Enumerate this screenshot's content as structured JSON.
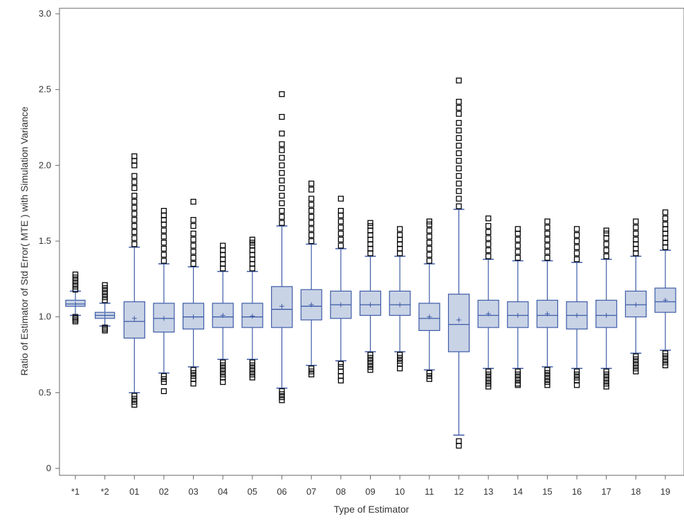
{
  "chart_data": {
    "type": "box",
    "title": "",
    "xlabel": "Type of Estimator",
    "ylabel": "Ratio of Estimator of Std Error( MTE ) with Simulation Variance",
    "ylim": [
      0,
      3.0
    ],
    "yticks": [
      0,
      0.5,
      1.0,
      1.5,
      2.0,
      2.5,
      3.0
    ],
    "ytick_labels": [
      "0",
      "0.5",
      "1.0",
      "1.5",
      "2.0",
      "2.5",
      "3.0"
    ],
    "grid": false,
    "legend": "none",
    "colors": {
      "box_fill": "#c9d3e6",
      "box_stroke": "#3b5aa6",
      "outlier_stroke": "#000000",
      "axis": "#666666"
    },
    "categories": [
      "*1",
      "*2",
      "01",
      "02",
      "03",
      "04",
      "05",
      "06",
      "07",
      "08",
      "09",
      "10",
      "11",
      "12",
      "13",
      "14",
      "15",
      "16",
      "17",
      "18",
      "19"
    ],
    "boxes": [
      {
        "category": "*1",
        "whisker_low": 1.01,
        "q1": 1.07,
        "median": 1.085,
        "mean": 1.085,
        "q3": 1.11,
        "whisker_high": 1.17,
        "outliers_low": [
          1.0,
          0.99,
          0.98,
          0.97
        ],
        "outliers_high": [
          1.18,
          1.2,
          1.22,
          1.24,
          1.26,
          1.28
        ]
      },
      {
        "category": "*2",
        "whisker_low": 0.94,
        "q1": 0.99,
        "median": 1.01,
        "mean": 1.01,
        "q3": 1.03,
        "whisker_high": 1.09,
        "outliers_low": [
          0.93,
          0.92,
          0.91
        ],
        "outliers_high": [
          1.11,
          1.13,
          1.15,
          1.17,
          1.19,
          1.21
        ]
      },
      {
        "category": "01",
        "whisker_low": 0.5,
        "q1": 0.86,
        "median": 0.97,
        "mean": 0.99,
        "q3": 1.1,
        "whisker_high": 1.46,
        "outliers_low": [
          0.48,
          0.46,
          0.44,
          0.42
        ],
        "outliers_high": [
          1.48,
          1.52,
          1.56,
          1.6,
          1.64,
          1.68,
          1.72,
          1.76,
          1.8,
          1.85,
          1.89,
          1.93,
          2.0,
          2.03,
          2.06
        ]
      },
      {
        "category": "02",
        "whisker_low": 0.63,
        "q1": 0.9,
        "median": 0.99,
        "mean": 0.99,
        "q3": 1.09,
        "whisker_high": 1.35,
        "outliers_low": [
          0.61,
          0.59,
          0.57,
          0.51
        ],
        "outliers_high": [
          1.37,
          1.41,
          1.45,
          1.49,
          1.53,
          1.57,
          1.61,
          1.64,
          1.67,
          1.7
        ]
      },
      {
        "category": "03",
        "whisker_low": 0.67,
        "q1": 0.92,
        "median": 1.0,
        "mean": 1.0,
        "q3": 1.09,
        "whisker_high": 1.33,
        "outliers_low": [
          0.65,
          0.63,
          0.61,
          0.59,
          0.56
        ],
        "outliers_high": [
          1.35,
          1.39,
          1.43,
          1.47,
          1.51,
          1.55,
          1.6,
          1.64,
          1.76
        ]
      },
      {
        "category": "04",
        "whisker_low": 0.72,
        "q1": 0.93,
        "median": 1.0,
        "mean": 1.01,
        "q3": 1.09,
        "whisker_high": 1.3,
        "outliers_low": [
          0.7,
          0.68,
          0.66,
          0.64,
          0.62,
          0.6,
          0.57
        ],
        "outliers_high": [
          1.32,
          1.35,
          1.38,
          1.41,
          1.44,
          1.47
        ]
      },
      {
        "category": "05",
        "whisker_low": 0.72,
        "q1": 0.93,
        "median": 1.0,
        "mean": 1.005,
        "q3": 1.09,
        "whisker_high": 1.3,
        "outliers_low": [
          0.7,
          0.68,
          0.66,
          0.64,
          0.62,
          0.6
        ],
        "outliers_high": [
          1.32,
          1.35,
          1.38,
          1.41,
          1.44,
          1.47,
          1.49,
          1.51
        ]
      },
      {
        "category": "06",
        "whisker_low": 0.53,
        "q1": 0.93,
        "median": 1.05,
        "mean": 1.07,
        "q3": 1.2,
        "whisker_high": 1.6,
        "outliers_low": [
          0.51,
          0.49,
          0.47,
          0.45
        ],
        "outliers_high": [
          1.62,
          1.66,
          1.7,
          1.75,
          1.8,
          1.85,
          1.9,
          1.95,
          2.0,
          2.05,
          2.1,
          2.14,
          2.21,
          2.32,
          2.47
        ]
      },
      {
        "category": "07",
        "whisker_low": 0.68,
        "q1": 0.98,
        "median": 1.07,
        "mean": 1.08,
        "q3": 1.18,
        "whisker_high": 1.48,
        "outliers_low": [
          0.66,
          0.64,
          0.62
        ],
        "outliers_high": [
          1.5,
          1.54,
          1.58,
          1.62,
          1.66,
          1.7,
          1.74,
          1.78,
          1.84,
          1.88
        ]
      },
      {
        "category": "08",
        "whisker_low": 0.71,
        "q1": 0.99,
        "median": 1.08,
        "mean": 1.08,
        "q3": 1.17,
        "whisker_high": 1.45,
        "outliers_low": [
          0.69,
          0.67,
          0.64,
          0.61,
          0.58
        ],
        "outliers_high": [
          1.47,
          1.51,
          1.55,
          1.59,
          1.63,
          1.67,
          1.7,
          1.78
        ]
      },
      {
        "category": "09",
        "whisker_low": 0.77,
        "q1": 1.01,
        "median": 1.08,
        "mean": 1.08,
        "q3": 1.17,
        "whisker_high": 1.4,
        "outliers_low": [
          0.75,
          0.73,
          0.71,
          0.69,
          0.67,
          0.65
        ],
        "outliers_high": [
          1.42,
          1.45,
          1.48,
          1.51,
          1.54,
          1.57,
          1.6,
          1.62
        ]
      },
      {
        "category": "10",
        "whisker_low": 0.77,
        "q1": 1.01,
        "median": 1.08,
        "mean": 1.08,
        "q3": 1.17,
        "whisker_high": 1.4,
        "outliers_low": [
          0.75,
          0.73,
          0.71,
          0.69,
          0.66
        ],
        "outliers_high": [
          1.42,
          1.45,
          1.48,
          1.51,
          1.54,
          1.58
        ]
      },
      {
        "category": "11",
        "whisker_low": 0.65,
        "q1": 0.91,
        "median": 0.99,
        "mean": 1.0,
        "q3": 1.09,
        "whisker_high": 1.35,
        "outliers_low": [
          0.63,
          0.61,
          0.59
        ],
        "outliers_high": [
          1.37,
          1.41,
          1.45,
          1.49,
          1.53,
          1.57,
          1.61,
          1.63
        ]
      },
      {
        "category": "12",
        "whisker_low": 0.22,
        "q1": 0.77,
        "median": 0.95,
        "mean": 0.98,
        "q3": 1.15,
        "whisker_high": 1.71,
        "outliers_low": [
          0.18,
          0.15
        ],
        "outliers_high": [
          1.73,
          1.78,
          1.83,
          1.88,
          1.93,
          1.98,
          2.03,
          2.08,
          2.13,
          2.18,
          2.23,
          2.28,
          2.34,
          2.38,
          2.42,
          2.56
        ]
      },
      {
        "category": "13",
        "whisker_low": 0.66,
        "q1": 0.93,
        "median": 1.01,
        "mean": 1.02,
        "q3": 1.11,
        "whisker_high": 1.38,
        "outliers_low": [
          0.64,
          0.62,
          0.6,
          0.58,
          0.56,
          0.54
        ],
        "outliers_high": [
          1.4,
          1.44,
          1.48,
          1.52,
          1.56,
          1.6,
          1.65
        ]
      },
      {
        "category": "14",
        "whisker_low": 0.66,
        "q1": 0.93,
        "median": 1.01,
        "mean": 1.01,
        "q3": 1.1,
        "whisker_high": 1.37,
        "outliers_low": [
          0.64,
          0.62,
          0.6,
          0.58,
          0.56,
          0.55
        ],
        "outliers_high": [
          1.39,
          1.43,
          1.47,
          1.51,
          1.55,
          1.58
        ]
      },
      {
        "category": "15",
        "whisker_low": 0.67,
        "q1": 0.93,
        "median": 1.01,
        "mean": 1.02,
        "q3": 1.11,
        "whisker_high": 1.37,
        "outliers_low": [
          0.65,
          0.63,
          0.61,
          0.59,
          0.57,
          0.55
        ],
        "outliers_high": [
          1.39,
          1.43,
          1.47,
          1.51,
          1.55,
          1.59,
          1.63
        ]
      },
      {
        "category": "16",
        "whisker_low": 0.66,
        "q1": 0.92,
        "median": 1.01,
        "mean": 1.01,
        "q3": 1.1,
        "whisker_high": 1.36,
        "outliers_low": [
          0.64,
          0.62,
          0.6,
          0.58,
          0.55
        ],
        "outliers_high": [
          1.38,
          1.42,
          1.46,
          1.5,
          1.54,
          1.58
        ]
      },
      {
        "category": "17",
        "whisker_low": 0.66,
        "q1": 0.93,
        "median": 1.01,
        "mean": 1.01,
        "q3": 1.11,
        "whisker_high": 1.38,
        "outliers_low": [
          0.64,
          0.62,
          0.6,
          0.58,
          0.56,
          0.54
        ],
        "outliers_high": [
          1.4,
          1.44,
          1.48,
          1.52,
          1.55,
          1.57
        ]
      },
      {
        "category": "18",
        "whisker_low": 0.76,
        "q1": 1.0,
        "median": 1.08,
        "mean": 1.08,
        "q3": 1.17,
        "whisker_high": 1.4,
        "outliers_low": [
          0.74,
          0.72,
          0.7,
          0.68,
          0.66,
          0.64
        ],
        "outliers_high": [
          1.42,
          1.45,
          1.48,
          1.51,
          1.55,
          1.59,
          1.63
        ]
      },
      {
        "category": "19",
        "whisker_low": 0.78,
        "q1": 1.03,
        "median": 1.1,
        "mean": 1.11,
        "q3": 1.19,
        "whisker_high": 1.44,
        "outliers_low": [
          0.76,
          0.74,
          0.72,
          0.7,
          0.68
        ],
        "outliers_high": [
          1.46,
          1.49,
          1.52,
          1.55,
          1.58,
          1.61,
          1.65,
          1.69
        ]
      }
    ]
  }
}
